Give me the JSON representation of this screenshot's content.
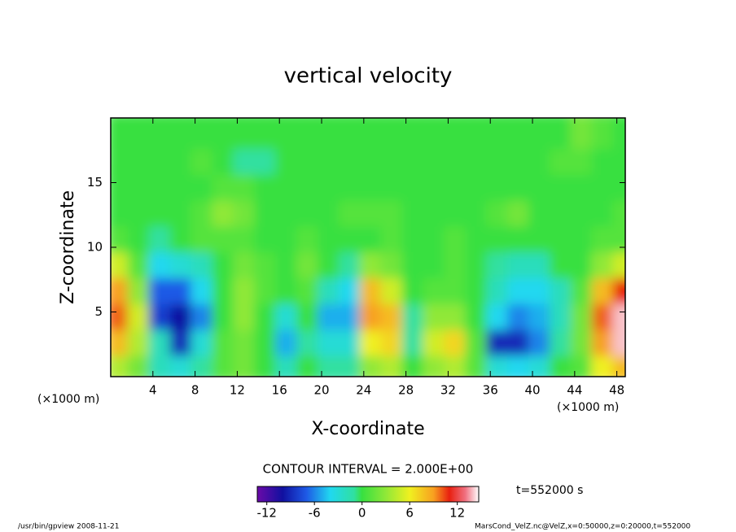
{
  "chart_data": {
    "type": "heatmap",
    "title": "vertical velocity",
    "x_label": "X-coordinate",
    "y_label": "Z-coordinate",
    "x_unit_left": "(×1000 m)",
    "x_unit_right": "(×1000 m)",
    "contour_note": "CONTOUR INTERVAL = 2.000E+00",
    "time_note": "t=552000 s",
    "footer_left": "/usr/bin/gpview  2008-11-21",
    "footer_right": "MarsCond_VelZ.nc@VelZ,x=0:50000,z=0:20000,t=552000",
    "xlim": [
      0,
      48.8
    ],
    "ylim": [
      0,
      20
    ],
    "xticks": [
      4,
      8,
      12,
      16,
      20,
      24,
      28,
      32,
      36,
      40,
      44,
      48
    ],
    "yticks": [
      5,
      10,
      15
    ],
    "x": [
      1,
      3,
      5,
      7,
      9,
      11,
      13,
      15,
      17,
      19,
      21,
      23,
      25,
      27,
      29,
      31,
      33,
      35,
      37,
      39,
      41,
      43,
      45,
      47,
      49
    ],
    "z": [
      1,
      3,
      5,
      7,
      9,
      11,
      13,
      15,
      17,
      19
    ],
    "values": [
      [
        4,
        2,
        -2,
        -3,
        -1,
        1,
        2,
        0,
        -2,
        0,
        -1,
        -1,
        3,
        4,
        0,
        3,
        4,
        1,
        -3,
        -4,
        -3,
        0,
        1,
        6,
        8
      ],
      [
        8,
        4,
        -2,
        -9,
        -3,
        1,
        2,
        0,
        -5,
        -1,
        -3,
        -3,
        6,
        7,
        -1,
        5,
        7,
        1,
        -9,
        -9,
        -6,
        -1,
        2,
        9,
        14
      ],
      [
        10,
        5,
        -8,
        -10,
        -6,
        0,
        3,
        0,
        -3,
        0,
        -5,
        -5,
        9,
        8,
        -1,
        3,
        3,
        0,
        -4,
        -6,
        -5,
        -2,
        2,
        10,
        14
      ],
      [
        9,
        3,
        -7,
        -7,
        -4,
        0,
        3,
        1,
        0,
        1,
        -2,
        -4,
        8,
        5,
        0,
        1,
        1,
        0,
        -2,
        -4,
        -4,
        -2,
        1,
        8,
        11
      ],
      [
        5,
        1,
        -4,
        -3,
        -2,
        0,
        2,
        1,
        0,
        2,
        0,
        -1,
        3,
        2,
        0,
        0,
        1,
        0,
        -1,
        -2,
        -2,
        0,
        0,
        3,
        5
      ],
      [
        1,
        0,
        -1,
        0,
        1,
        1,
        1,
        0,
        0,
        1,
        0,
        0,
        0,
        1,
        0,
        0,
        1,
        0,
        0,
        0,
        0,
        0,
        0,
        1,
        1
      ],
      [
        0,
        0,
        0,
        0,
        1,
        3,
        2,
        0,
        0,
        0,
        0,
        1,
        1,
        1,
        0,
        0,
        0,
        0,
        1,
        2,
        0,
        0,
        0,
        0,
        1
      ],
      [
        0,
        0,
        0,
        0,
        0,
        1,
        1,
        0,
        0,
        0,
        0,
        0,
        0,
        0,
        0,
        0,
        0,
        0,
        0,
        0,
        0,
        0,
        0,
        0,
        0
      ],
      [
        0,
        0,
        0,
        0,
        1,
        0,
        -1,
        -1,
        0,
        0,
        0,
        0,
        0,
        0,
        0,
        0,
        0,
        0,
        0,
        0,
        0,
        1,
        1,
        0,
        0
      ],
      [
        0,
        0,
        0,
        0,
        0,
        0,
        0,
        0,
        0,
        0,
        0,
        0,
        0,
        0,
        0,
        0,
        0,
        0,
        0,
        0,
        0,
        0,
        2,
        1,
        0
      ]
    ],
    "colorbar_lim": [
      -13.2,
      14.7
    ],
    "colorbar_ticks": [
      -12,
      -6,
      0,
      6,
      12
    ],
    "colorscale": [
      [
        -13.2,
        "#6a0aa8"
      ],
      [
        -10,
        "#1010a0"
      ],
      [
        -7,
        "#1e5ae6"
      ],
      [
        -4,
        "#20d8f0"
      ],
      [
        -1,
        "#30e0a0"
      ],
      [
        0,
        "#38e040"
      ],
      [
        3,
        "#90e838"
      ],
      [
        6,
        "#f0f020"
      ],
      [
        9,
        "#f8a020"
      ],
      [
        11,
        "#e82010"
      ],
      [
        13,
        "#f07080"
      ],
      [
        14.7,
        "#ffffff"
      ]
    ]
  }
}
